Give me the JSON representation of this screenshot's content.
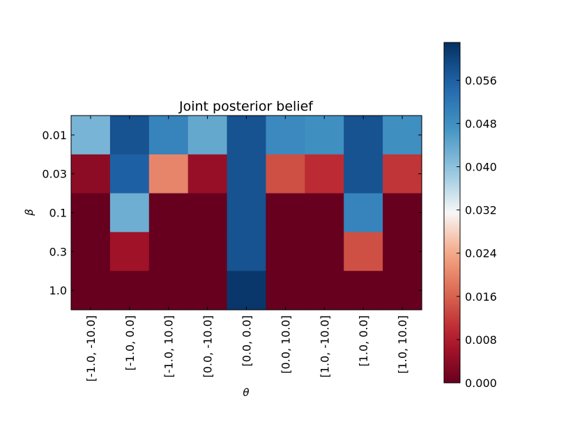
{
  "chart_data": {
    "type": "heatmap",
    "title": "Joint posterior belief",
    "xlabel": "θ",
    "ylabel": "β",
    "x_categories": [
      "[-1.0, -10.0]",
      "[-1.0, 0.0]",
      "[-1.0, 10.0]",
      "[0.0, -10.0]",
      "[0.0, 0.0]",
      "[0.0, 10.0]",
      "[1.0, -10.0]",
      "[1.0, 0.0]",
      "[1.0, 10.0]"
    ],
    "y_categories": [
      "0.01",
      "0.03",
      "0.1",
      "0.3",
      "1.0"
    ],
    "values": [
      [
        0.042,
        0.058,
        0.05,
        0.044,
        0.058,
        0.049,
        0.048,
        0.058,
        0.048
      ],
      [
        0.004,
        0.056,
        0.02,
        0.005,
        0.058,
        0.014,
        0.01,
        0.058,
        0.011
      ],
      [
        0.0,
        0.043,
        0.0,
        0.0,
        0.058,
        0.0,
        0.0,
        0.05,
        0.0
      ],
      [
        0.0,
        0.006,
        0.0,
        0.0,
        0.058,
        0.0,
        0.0,
        0.014,
        0.0
      ],
      [
        0.0,
        0.0,
        0.0,
        0.0,
        0.062,
        0.0,
        0.0,
        0.0,
        0.0
      ]
    ],
    "colorbar": {
      "colormap": "RdBu",
      "range": [
        0.0,
        0.063
      ],
      "ticks": [
        "0.000",
        "0.008",
        "0.016",
        "0.024",
        "0.032",
        "0.040",
        "0.048",
        "0.056"
      ]
    },
    "grid": false,
    "legend": "none"
  }
}
